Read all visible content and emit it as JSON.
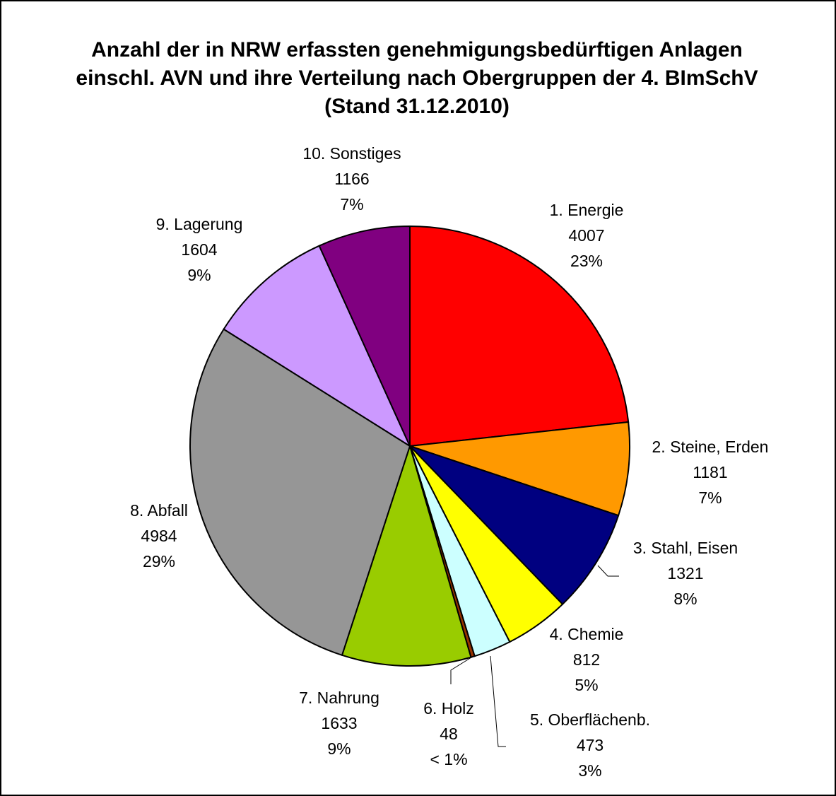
{
  "chart_data": {
    "type": "pie",
    "title": [
      "Anzahl der in NRW erfassten genehmigungsbedürftigen Anlagen",
      "einschl. AVN und ihre Verteilung nach Obergruppen der 4. BImSchV",
      "(Stand 31.12.2010)"
    ],
    "categories": [
      "1. Energie",
      "2. Steine, Erden",
      "3. Stahl, Eisen",
      "4. Chemie",
      "5. Oberflächenb.",
      "6. Holz",
      "7. Nahrung",
      "8. Abfall",
      "9. Lagerung",
      "10. Sonstiges"
    ],
    "values": [
      4007,
      1181,
      1321,
      812,
      473,
      48,
      1633,
      4984,
      1604,
      1166
    ],
    "percent_labels": [
      "23%",
      "7%",
      "8%",
      "5%",
      "3%",
      "< 1%",
      "9%",
      "29%",
      "9%",
      "7%"
    ],
    "colors": [
      "#ff0000",
      "#ff9900",
      "#000080",
      "#ffff00",
      "#ccffff",
      "#993300",
      "#99cc00",
      "#969696",
      "#cc99ff",
      "#800080"
    ]
  }
}
